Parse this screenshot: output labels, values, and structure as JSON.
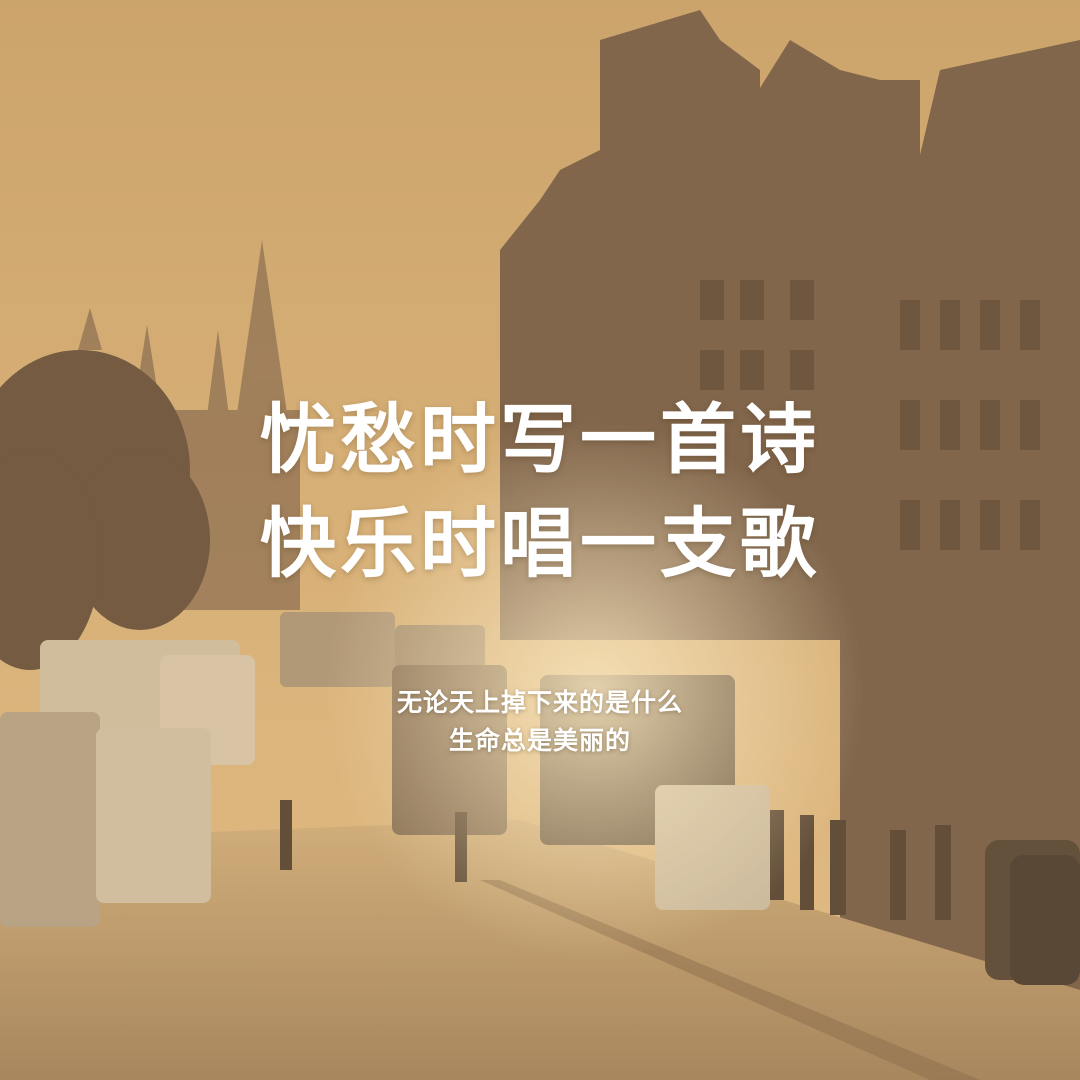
{
  "poster": {
    "headline": [
      "忧愁时写一首诗",
      "快乐时唱一支歌"
    ],
    "subline": [
      "无论天上掉下来的是什么",
      "生命总是美丽的"
    ]
  },
  "colors": {
    "sky": "#d9b27a",
    "haze": "#e6c28a",
    "buildings": "#6b5441",
    "street": "#b99a70",
    "text": "#ffffff"
  }
}
